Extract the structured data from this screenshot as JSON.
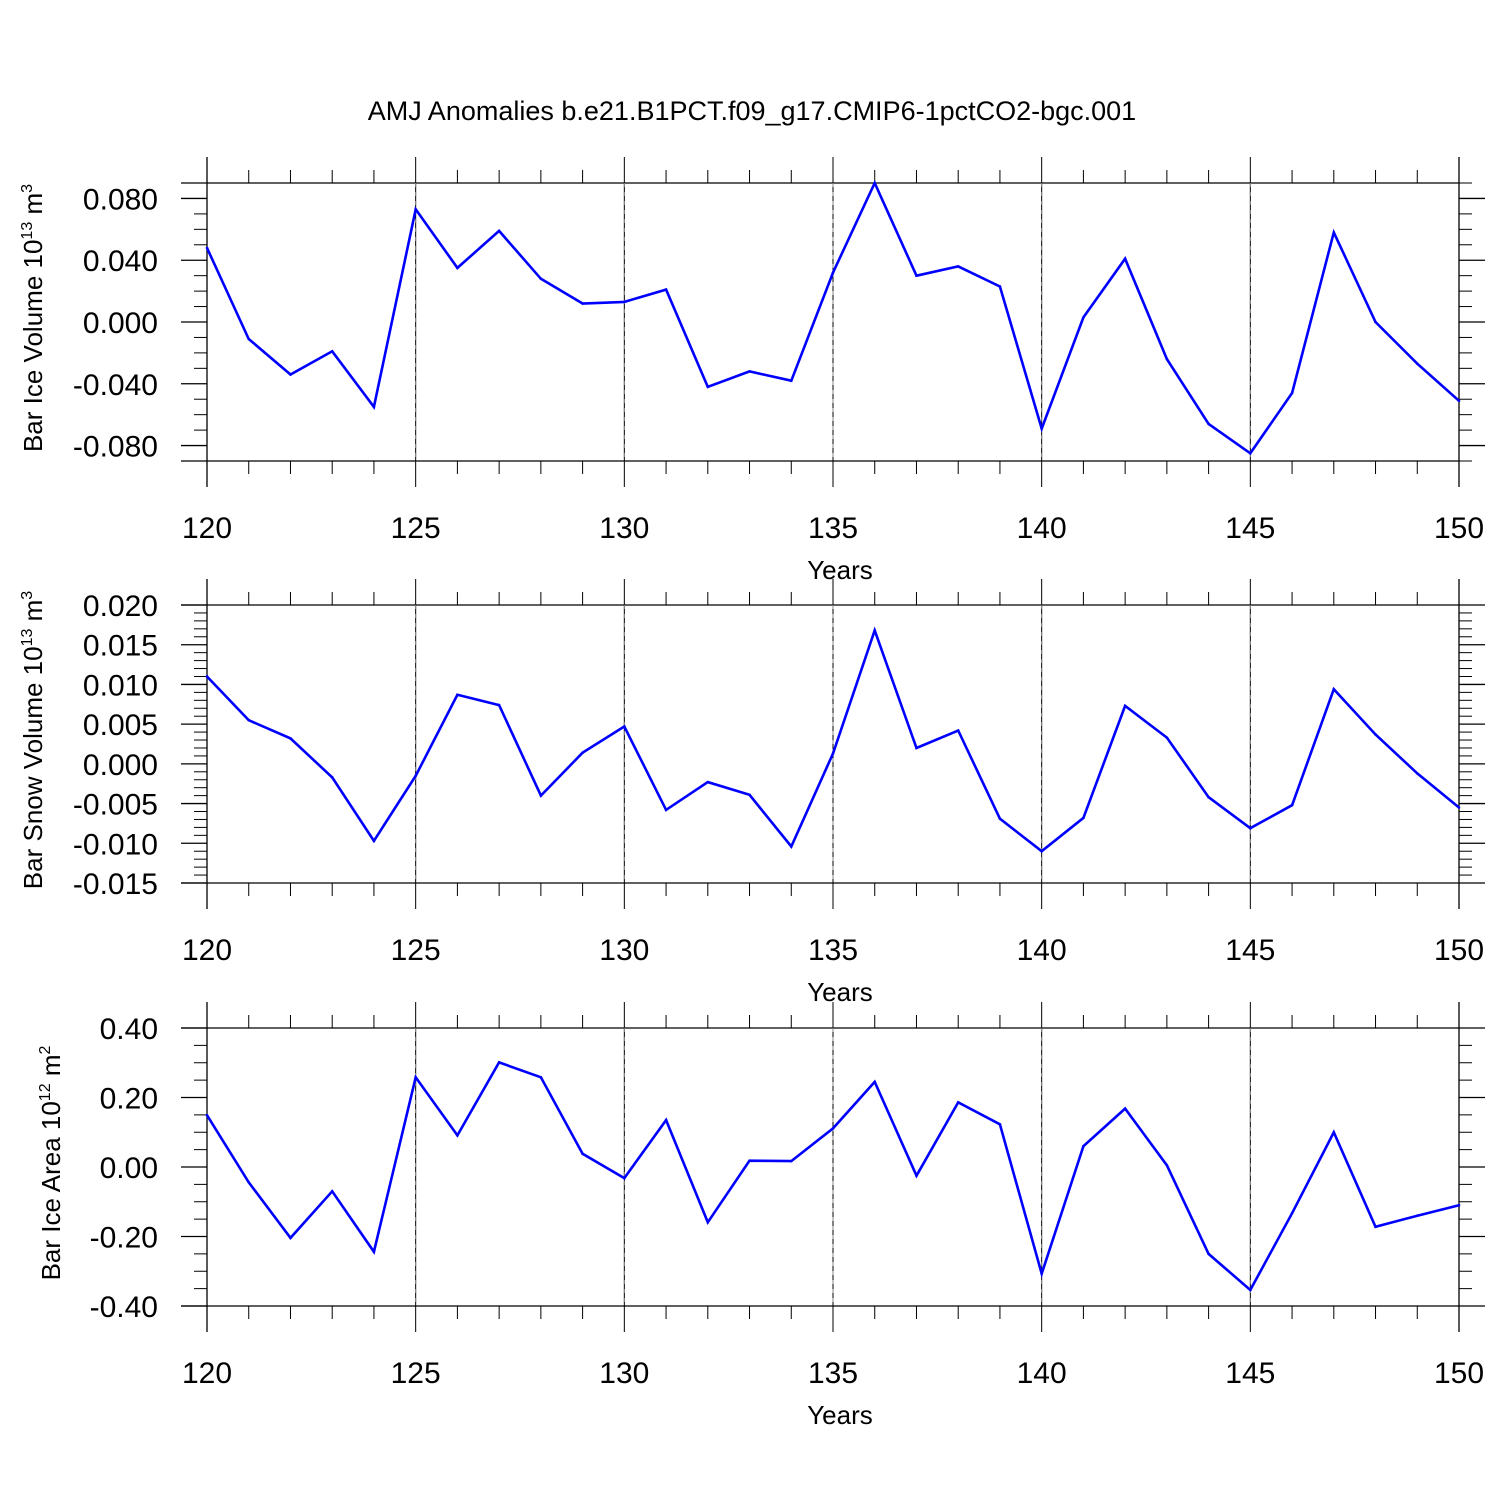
{
  "title": "AMJ Anomalies b.e21.B1PCT.f09_g17.CMIP6-1pctCO2-bgc.001",
  "line_color": "#0000ff",
  "chart_data": [
    {
      "type": "line",
      "ylabel": {
        "text": "Bar Ice Volume 10",
        "exp": "13",
        "unit": " m",
        "unit_exp": "3"
      },
      "xlabel": "Years",
      "xlim": [
        120,
        150
      ],
      "ylim": [
        -0.09,
        0.09
      ],
      "x_ticks": [
        120,
        125,
        130,
        135,
        140,
        145,
        150
      ],
      "x_tick_labels": [
        "120",
        "125",
        "130",
        "135",
        "140",
        "145",
        "150"
      ],
      "y_ticks": [
        -0.08,
        -0.04,
        0.0,
        0.04,
        0.08
      ],
      "y_tick_labels": [
        "-0.080",
        "-0.040",
        "0.000",
        "0.040",
        "0.080"
      ],
      "y_minor_step": 0.01,
      "x": [
        120,
        121,
        122,
        123,
        124,
        125,
        126,
        127,
        128,
        129,
        130,
        131,
        132,
        133,
        134,
        135,
        136,
        137,
        138,
        139,
        140,
        141,
        142,
        143,
        144,
        145,
        146,
        147,
        148,
        149,
        150
      ],
      "series": [
        {
          "values": [
            0.048,
            -0.011,
            -0.034,
            -0.019,
            -0.055,
            0.073,
            0.035,
            0.059,
            0.028,
            0.012,
            0.013,
            0.021,
            -0.042,
            -0.032,
            -0.038,
            0.032,
            0.09,
            0.03,
            0.036,
            0.023,
            -0.069,
            0.003,
            0.041,
            -0.024,
            -0.066,
            -0.085,
            -0.046,
            0.058,
            0.0,
            -0.027,
            -0.051
          ]
        }
      ]
    },
    {
      "type": "line",
      "ylabel": {
        "text": "Bar Snow Volume 10",
        "exp": "13",
        "unit": " m",
        "unit_exp": "3"
      },
      "xlabel": "Years",
      "xlim": [
        120,
        150
      ],
      "ylim": [
        -0.015,
        0.02
      ],
      "x_ticks": [
        120,
        125,
        130,
        135,
        140,
        145,
        150
      ],
      "x_tick_labels": [
        "120",
        "125",
        "130",
        "135",
        "140",
        "145",
        "150"
      ],
      "y_ticks": [
        -0.015,
        -0.01,
        -0.005,
        0.0,
        0.005,
        0.01,
        0.015,
        0.02
      ],
      "y_tick_labels": [
        "-0.015",
        "-0.010",
        "-0.005",
        "0.000",
        "0.005",
        "0.010",
        "0.015",
        "0.020"
      ],
      "y_minor_step": 0.001,
      "x": [
        120,
        121,
        122,
        123,
        124,
        125,
        126,
        127,
        128,
        129,
        130,
        131,
        132,
        133,
        134,
        135,
        136,
        137,
        138,
        139,
        140,
        141,
        142,
        143,
        144,
        145,
        146,
        147,
        148,
        149,
        150
      ],
      "series": [
        {
          "values": [
            0.011,
            0.0055,
            0.0032,
            -0.0017,
            -0.0097,
            -0.0015,
            0.0087,
            0.0074,
            -0.004,
            0.0014,
            0.0047,
            -0.0058,
            -0.0023,
            -0.0039,
            -0.0104,
            0.0013,
            0.0168,
            0.002,
            0.0042,
            -0.0069,
            -0.011,
            -0.0068,
            0.0073,
            0.0033,
            -0.0042,
            -0.0081,
            -0.0052,
            0.0094,
            0.0037,
            -0.0012,
            -0.0055
          ]
        }
      ]
    },
    {
      "type": "line",
      "ylabel": {
        "text": "Bar Ice Area 10",
        "exp": "12",
        "unit": " m",
        "unit_exp": "2"
      },
      "xlabel": "Years",
      "xlim": [
        120,
        150
      ],
      "ylim": [
        -0.4,
        0.4
      ],
      "x_ticks": [
        120,
        125,
        130,
        135,
        140,
        145,
        150
      ],
      "x_tick_labels": [
        "120",
        "125",
        "130",
        "135",
        "140",
        "145",
        "150"
      ],
      "y_ticks": [
        -0.4,
        -0.2,
        0.0,
        0.2,
        0.4
      ],
      "y_tick_labels": [
        "-0.40",
        "-0.20",
        "0.00",
        "0.20",
        "0.40"
      ],
      "y_minor_step": 0.05,
      "x": [
        120,
        121,
        122,
        123,
        124,
        125,
        126,
        127,
        128,
        129,
        130,
        131,
        132,
        133,
        134,
        135,
        136,
        137,
        138,
        139,
        140,
        141,
        142,
        143,
        144,
        145,
        146,
        147,
        148,
        149,
        150
      ],
      "series": [
        {
          "values": [
            0.149,
            -0.044,
            -0.204,
            -0.07,
            -0.244,
            0.258,
            0.091,
            0.301,
            0.258,
            0.038,
            -0.032,
            0.135,
            -0.159,
            0.018,
            0.017,
            0.111,
            0.245,
            -0.025,
            0.186,
            0.123,
            -0.307,
            0.06,
            0.168,
            0.005,
            -0.25,
            -0.354,
            -0.133,
            0.1,
            -0.172,
            -0.14,
            -0.11
          ]
        }
      ]
    }
  ]
}
